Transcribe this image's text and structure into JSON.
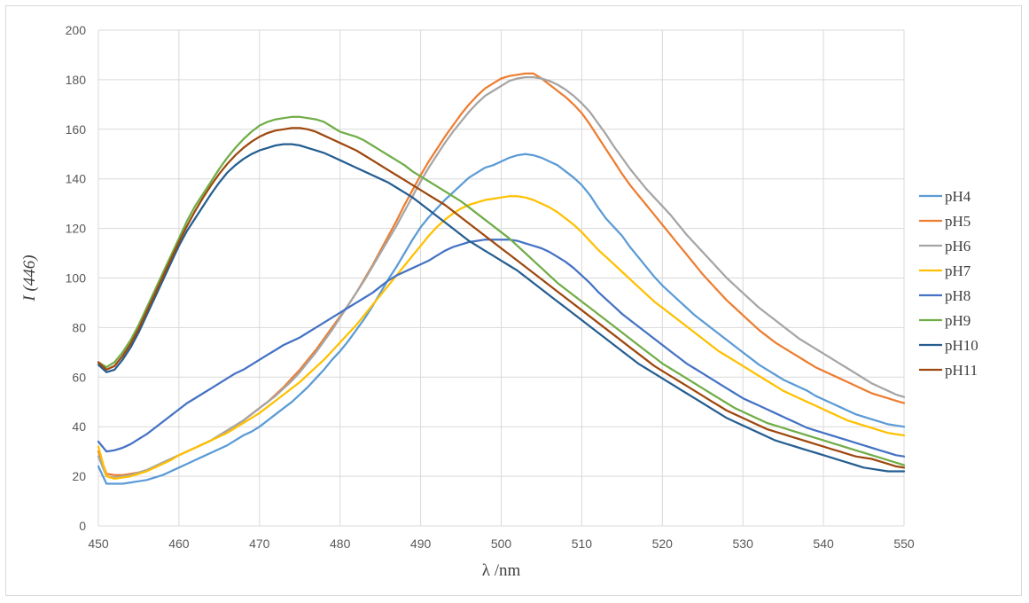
{
  "chart_data": {
    "type": "line",
    "title": "",
    "xlabel": "λ /nm",
    "ylabel": "I (446)",
    "xlim": [
      450,
      550
    ],
    "ylim": [
      0,
      200
    ],
    "x_ticks": [
      450,
      460,
      470,
      480,
      490,
      500,
      510,
      520,
      530,
      540,
      550
    ],
    "y_ticks": [
      0,
      20,
      40,
      60,
      80,
      100,
      120,
      140,
      160,
      180,
      200
    ],
    "grid": true,
    "legend_position": "right",
    "x": [
      450,
      451,
      452,
      453,
      454,
      455,
      456,
      457,
      458,
      459,
      460,
      461,
      462,
      463,
      464,
      465,
      466,
      467,
      468,
      469,
      470,
      471,
      472,
      473,
      474,
      475,
      476,
      477,
      478,
      479,
      480,
      481,
      482,
      483,
      484,
      485,
      486,
      487,
      488,
      489,
      490,
      491,
      492,
      493,
      494,
      495,
      496,
      497,
      498,
      499,
      500,
      501,
      502,
      503,
      504,
      505,
      506,
      507,
      508,
      509,
      510,
      511,
      512,
      513,
      514,
      515,
      516,
      517,
      518,
      519,
      520,
      521,
      522,
      523,
      524,
      525,
      526,
      527,
      528,
      529,
      530,
      531,
      532,
      533,
      534,
      535,
      536,
      537,
      538,
      539,
      540,
      541,
      542,
      543,
      544,
      545,
      546,
      547,
      548,
      549,
      550
    ],
    "series": [
      {
        "name": "pH4",
        "color": "#5b9bd5",
        "values": [
          24,
          17,
          17,
          17,
          17.5,
          18,
          18.5,
          19.5,
          20.5,
          22,
          23.5,
          25,
          26.5,
          28,
          29.5,
          31,
          32.5,
          34.5,
          36.5,
          38,
          40,
          42.5,
          45,
          47.5,
          50,
          53,
          56,
          59.5,
          63,
          67,
          70.5,
          74.5,
          79,
          83.5,
          88.5,
          94,
          99.5,
          104.5,
          110,
          115.5,
          120.5,
          124.5,
          128,
          131.5,
          134.5,
          137.5,
          140.5,
          142.5,
          144.5,
          145.5,
          147,
          148.5,
          149.5,
          150,
          149.5,
          148.5,
          147,
          145.5,
          143,
          140.5,
          137.5,
          133.5,
          128.5,
          124,
          120.5,
          117,
          112.5,
          108.5,
          104.5,
          100.5,
          97,
          94,
          91,
          88,
          85,
          82.5,
          80,
          77.5,
          75,
          72.5,
          70,
          67.5,
          65,
          63,
          61,
          59,
          57.5,
          56,
          54.5,
          52.5,
          51,
          49.5,
          48,
          46.5,
          45,
          44,
          43,
          42,
          41,
          40.5,
          40
        ]
      },
      {
        "name": "pH5",
        "color": "#ed7d31",
        "values": [
          30,
          21,
          20.5,
          20.5,
          21,
          21.5,
          22.5,
          24,
          25.5,
          27,
          28.5,
          30,
          31.5,
          33,
          34.5,
          36.5,
          38.5,
          40.5,
          42.5,
          45,
          47.5,
          50,
          53,
          56,
          59.5,
          63,
          67,
          71,
          75.5,
          80,
          84.5,
          89,
          94,
          99.5,
          105,
          111,
          117,
          123,
          129.5,
          135.5,
          141.5,
          147,
          152,
          157,
          161.5,
          166,
          170,
          173.5,
          176.5,
          178.5,
          180.5,
          181.5,
          182,
          182.5,
          182.5,
          180.5,
          178,
          175.5,
          173,
          170,
          166.5,
          162,
          157,
          152,
          147,
          142,
          137.5,
          133.5,
          129.5,
          125.5,
          121.5,
          117.5,
          113.5,
          109.5,
          105.5,
          101.5,
          98,
          94.5,
          91,
          88,
          85,
          82,
          79,
          76.5,
          74,
          72,
          70,
          68,
          66,
          64,
          62.5,
          61,
          59.5,
          58,
          56.5,
          55,
          53.5,
          52.5,
          51.5,
          50.5,
          49.5
        ]
      },
      {
        "name": "pH6",
        "color": "#a5a5a5",
        "values": [
          28,
          20,
          19.5,
          20,
          20.5,
          21.5,
          22.5,
          24,
          25.5,
          27,
          28.5,
          30,
          31.5,
          33,
          34.5,
          36.5,
          38.5,
          40.5,
          42.5,
          45,
          47.5,
          50,
          52.5,
          55.5,
          58.5,
          62,
          66,
          70,
          74.5,
          79,
          84,
          89,
          94,
          99,
          104.5,
          110,
          115.5,
          121,
          127,
          133,
          139,
          144.5,
          149.5,
          154.5,
          159,
          163,
          167,
          170.5,
          173.5,
          175.5,
          177.5,
          179.5,
          180.5,
          181,
          181,
          180.5,
          179.5,
          178,
          176,
          173.5,
          170.5,
          167,
          162.5,
          158,
          153,
          148.5,
          144,
          140,
          136,
          132.5,
          129,
          125.5,
          121.5,
          117.5,
          114,
          110.5,
          107,
          103.5,
          100,
          97,
          94,
          91,
          88,
          85.5,
          83,
          80.5,
          78,
          75.5,
          73.5,
          71.5,
          69.5,
          67.5,
          65.5,
          63.5,
          61.5,
          59.5,
          57.5,
          56,
          54.5,
          53,
          52
        ]
      },
      {
        "name": "pH7",
        "color": "#ffc000",
        "values": [
          32,
          20,
          19,
          19.5,
          20,
          21,
          22,
          23.5,
          25,
          26.5,
          28.5,
          30,
          31.5,
          33,
          34.5,
          36,
          37.5,
          39.5,
          41.5,
          43.5,
          45.5,
          48,
          50.5,
          53,
          55.5,
          58,
          61,
          64,
          67,
          70.5,
          74,
          77.5,
          81,
          85,
          89,
          93,
          97,
          101,
          105,
          109,
          113,
          117,
          120.5,
          123.5,
          126,
          128,
          129.5,
          130.5,
          131.5,
          132,
          132.5,
          133,
          133,
          132.5,
          131.5,
          130,
          128.5,
          126.5,
          124,
          121.5,
          118.5,
          115,
          111.5,
          108.5,
          105.5,
          102.5,
          99.5,
          96.5,
          93.5,
          90.5,
          88,
          85.5,
          83,
          80.5,
          78,
          75.5,
          73,
          70.5,
          68.5,
          66.5,
          64.5,
          62.5,
          60.5,
          58.5,
          56.5,
          54.5,
          53,
          51.5,
          50,
          48.5,
          47,
          45.5,
          44,
          42.5,
          41.5,
          40.5,
          39.5,
          38.5,
          37.5,
          37,
          36.5
        ]
      },
      {
        "name": "pH8",
        "color": "#4472c4",
        "values": [
          34,
          30,
          30.5,
          31.5,
          33,
          35,
          37,
          39.5,
          42,
          44.5,
          47,
          49.5,
          51.5,
          53.5,
          55.5,
          57.5,
          59.5,
          61.5,
          63,
          65,
          67,
          69,
          71,
          73,
          74.5,
          76,
          78,
          80,
          82,
          84,
          86,
          88,
          90,
          92,
          94,
          96.5,
          99,
          101,
          102.5,
          104,
          105.5,
          107,
          109,
          111,
          112.5,
          113.5,
          114.5,
          115,
          115.5,
          115.5,
          115.5,
          115.5,
          115,
          114,
          113,
          112,
          110.5,
          108.5,
          106.5,
          104,
          101,
          98,
          94.5,
          91.5,
          88.5,
          85.5,
          83,
          80.5,
          78,
          75.5,
          73,
          70.5,
          68,
          65.5,
          63.5,
          61.5,
          59.5,
          57.5,
          55.5,
          53.5,
          51.5,
          50,
          48.5,
          47,
          45.5,
          44,
          42.5,
          41,
          39.5,
          38.5,
          37.5,
          36.5,
          35.5,
          34.5,
          33.5,
          32.5,
          31.5,
          30.5,
          29.5,
          28.5,
          28
        ]
      },
      {
        "name": "pH9",
        "color": "#70ad47",
        "values": [
          66,
          64,
          66,
          70,
          75,
          81,
          88,
          95,
          102,
          109,
          116,
          123,
          129,
          134,
          139,
          144,
          148.5,
          152.5,
          156,
          159,
          161.5,
          163,
          164,
          164.5,
          165,
          165,
          164.5,
          164,
          163,
          161,
          159,
          158,
          157,
          155.5,
          153.5,
          151.5,
          149.5,
          147.5,
          145.5,
          143,
          141,
          139,
          137,
          135,
          133,
          131,
          128.5,
          126,
          123.5,
          121,
          118.5,
          116,
          113,
          110,
          107,
          104,
          101,
          98,
          95.5,
          93,
          90.5,
          88,
          85.5,
          83,
          80.5,
          78,
          75.5,
          73,
          70.5,
          68,
          65.5,
          63.5,
          61.5,
          59.5,
          57.5,
          55.5,
          53.5,
          51.5,
          49.5,
          47.5,
          46,
          44.5,
          43,
          41.5,
          40.5,
          39.5,
          38.5,
          37.5,
          36.5,
          35.5,
          34.5,
          33.5,
          32.5,
          31.5,
          30.5,
          29.5,
          28.5,
          27.5,
          26.5,
          25.5,
          24.5
        ]
      },
      {
        "name": "pH10",
        "color": "#255e91",
        "values": [
          65,
          62,
          63,
          67,
          72,
          78,
          85,
          92,
          99,
          106,
          113,
          119,
          124,
          129,
          134,
          138.5,
          142.5,
          145.5,
          148,
          150,
          151.5,
          152.5,
          153.5,
          154,
          154,
          153.5,
          152.5,
          151.5,
          150.5,
          149,
          147.5,
          146,
          144.5,
          143,
          141.5,
          140,
          138.5,
          136.5,
          134.5,
          132.5,
          130,
          127.5,
          125,
          122.5,
          120,
          117.5,
          115,
          113,
          111,
          109,
          107,
          105,
          103,
          100.5,
          98,
          95.5,
          93,
          90.5,
          88,
          85.5,
          83,
          80.5,
          78,
          75.5,
          73,
          70.5,
          68,
          65.5,
          63.5,
          61.5,
          59.5,
          57.5,
          55.5,
          53.5,
          51.5,
          49.5,
          47.5,
          45.5,
          43.5,
          42,
          40.5,
          39,
          37.5,
          36,
          34.5,
          33.5,
          32.5,
          31.5,
          30.5,
          29.5,
          28.5,
          27.5,
          26.5,
          25.5,
          24.5,
          23.5,
          23,
          22.5,
          22,
          22,
          22
        ]
      },
      {
        "name": "pH11",
        "color": "#9e480e",
        "values": [
          66,
          63,
          64.5,
          68.5,
          73.5,
          79.5,
          86.5,
          93.5,
          100.5,
          107.5,
          114.5,
          121,
          127,
          132.5,
          137.5,
          142,
          146,
          149.5,
          152.5,
          155,
          157,
          158.5,
          159.5,
          160,
          160.5,
          160.5,
          160,
          159,
          157.5,
          156,
          154.5,
          153,
          151.5,
          149.5,
          147.5,
          145.5,
          143.5,
          141.5,
          139.5,
          137.5,
          135.5,
          133.5,
          131.5,
          129.5,
          127,
          124.5,
          122,
          119.5,
          117,
          114.5,
          112,
          109.5,
          107,
          104.5,
          102,
          99.5,
          97,
          94.5,
          92,
          89.5,
          87,
          84.5,
          82,
          79.5,
          77,
          74.5,
          72,
          69.5,
          67,
          64.5,
          62.5,
          60.5,
          58.5,
          56.5,
          54.5,
          52.5,
          50.5,
          48.5,
          46.5,
          45,
          43.5,
          42,
          40.5,
          39,
          38,
          37,
          36,
          35,
          34,
          33,
          32,
          31,
          30,
          29,
          28,
          27.5,
          27,
          26,
          25,
          24,
          23.5
        ]
      }
    ]
  }
}
